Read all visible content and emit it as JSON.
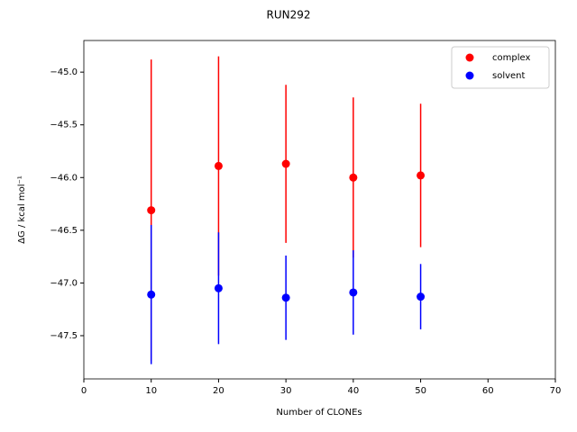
{
  "chart_data": {
    "type": "errorbar-scatter",
    "title": "RUN292",
    "x_label": "Number of CLONEs",
    "y_label": "ΔG / kcal mol⁻¹",
    "x": [
      10,
      20,
      30,
      40,
      50
    ],
    "series": [
      {
        "name": "complex",
        "color": "#ff0000",
        "values": [
          -46.31,
          -45.89,
          -45.87,
          -46.0,
          -45.98
        ],
        "errors": [
          1.43,
          1.04,
          0.75,
          0.76,
          0.68
        ]
      },
      {
        "name": "solvent",
        "color": "#0000ff",
        "values": [
          -47.11,
          -47.05,
          -47.14,
          -47.09,
          -47.13
        ],
        "errors": [
          0.66,
          0.53,
          0.4,
          0.4,
          0.31
        ]
      }
    ],
    "xlim": [
      0,
      70
    ],
    "xticks": [
      0,
      10,
      20,
      30,
      40,
      50,
      60,
      70
    ],
    "ylim": [
      -47.91,
      -44.7
    ],
    "yticks": [
      {
        "value": -45.0,
        "label": "−45.0"
      },
      {
        "value": -45.5,
        "label": "−45.5"
      },
      {
        "value": -46.0,
        "label": "−46.0"
      },
      {
        "value": -46.5,
        "label": "−46.5"
      },
      {
        "value": -47.0,
        "label": "−47.0"
      },
      {
        "value": -47.5,
        "label": "−47.5"
      }
    ],
    "grid": false,
    "legend": "upper right"
  }
}
